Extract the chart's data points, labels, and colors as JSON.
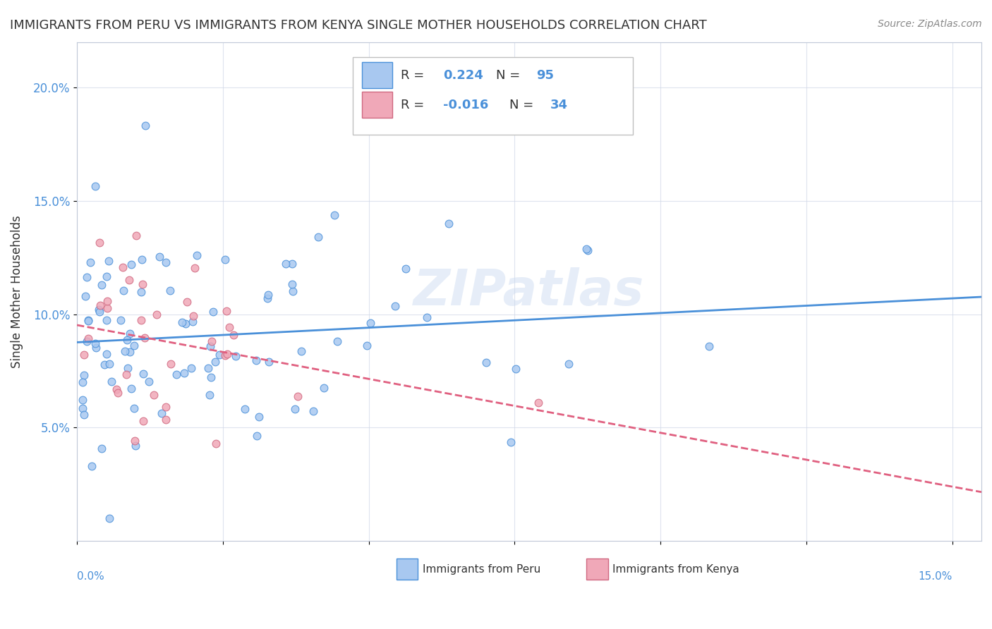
{
  "title": "IMMIGRANTS FROM PERU VS IMMIGRANTS FROM KENYA SINGLE MOTHER HOUSEHOLDS CORRELATION CHART",
  "source": "Source: ZipAtlas.com",
  "ylabel": "Single Mother Households",
  "r_peru": 0.224,
  "n_peru": 95,
  "r_kenya": -0.016,
  "n_kenya": 34,
  "color_peru": "#a8c8f0",
  "color_kenya": "#f0a8b8",
  "line_color_peru": "#4a90d9",
  "line_color_kenya": "#e06080",
  "watermark": "ZIPatlas",
  "xlim": [
    0.0,
    0.155
  ],
  "ylim": [
    0.0,
    0.22
  ],
  "yticks": [
    0.05,
    0.1,
    0.15,
    0.2
  ],
  "ytick_labels": [
    "5.0%",
    "10.0%",
    "15.0%",
    "20.0%"
  ],
  "xticks": [
    0.0,
    0.025,
    0.05,
    0.075,
    0.1,
    0.125,
    0.15
  ]
}
